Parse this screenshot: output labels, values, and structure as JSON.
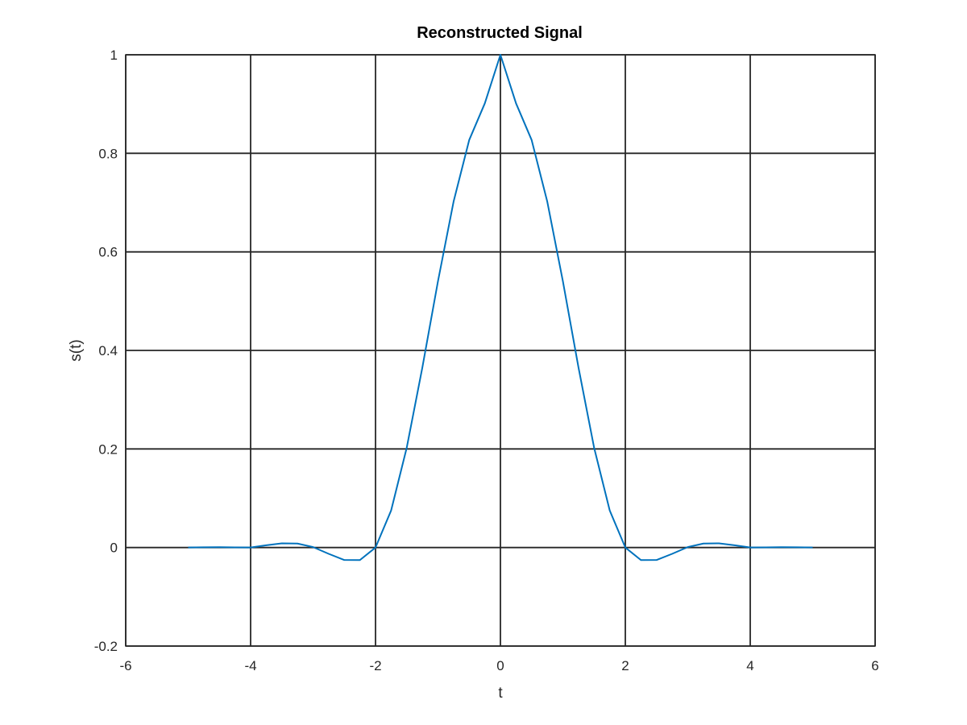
{
  "chart_data": {
    "type": "line",
    "title": "Reconstructed Signal",
    "xlabel": "t",
    "ylabel": "s(t)",
    "xlim": [
      -6,
      6
    ],
    "ylim": [
      -0.2,
      1
    ],
    "xticks": [
      -6,
      -4,
      -2,
      0,
      2,
      4,
      6
    ],
    "yticks": [
      -0.2,
      0,
      0.2,
      0.4,
      0.6,
      0.8,
      1
    ],
    "xtick_labels": [
      "-6",
      "-4",
      "-2",
      "0",
      "2",
      "4",
      "6"
    ],
    "ytick_labels": [
      "-0.2",
      "0",
      "0.2",
      "0.4",
      "0.6",
      "0.8",
      "1"
    ],
    "grid": true,
    "series": [
      {
        "color": "#0072bd",
        "x": [
          -5,
          -4.75,
          -4.5,
          -4.25,
          -4,
          -3.75,
          -3.5,
          -3.25,
          -3,
          -2.75,
          -2.5,
          -2.25,
          -2,
          -1.75,
          -1.5,
          -1.25,
          -1,
          -0.75,
          -0.5,
          -0.25,
          0,
          0.25,
          0.5,
          0.75,
          1,
          1.25,
          1.5,
          1.75,
          2,
          2.25,
          2.5,
          2.75,
          3,
          3.25,
          3.5,
          3.75,
          4,
          4.25,
          4.5,
          4.75,
          5
        ],
        "y": [
          0,
          0.0005,
          0.0007,
          0.0003,
          0,
          0.0045,
          0.0085,
          0.008,
          0.0009,
          -0.0128,
          -0.0253,
          -0.0255,
          0,
          0.0752,
          0.2026,
          0.3653,
          0.5404,
          0.702,
          0.827,
          0.9014,
          1.0,
          0.9014,
          0.827,
          0.702,
          0.5404,
          0.3653,
          0.2026,
          0.0752,
          0,
          -0.0255,
          -0.0253,
          -0.0128,
          0.0009,
          0.008,
          0.0085,
          0.0045,
          0,
          0.0003,
          0.0007,
          0.0005,
          0
        ]
      }
    ]
  }
}
